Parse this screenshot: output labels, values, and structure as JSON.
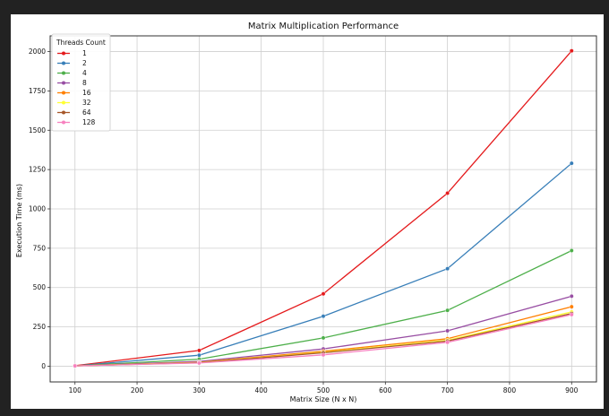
{
  "chart_data": {
    "type": "line",
    "title": "Matrix Multiplication Performance",
    "xlabel": "Matrix Size (N x N)",
    "ylabel": "Execution Time (ms)",
    "xlim": [
      60,
      940
    ],
    "ylim": [
      -100,
      2100
    ],
    "xticks": [
      100,
      200,
      300,
      400,
      500,
      600,
      700,
      800,
      900
    ],
    "yticks": [
      0,
      250,
      500,
      750,
      1000,
      1250,
      1500,
      1750,
      2000
    ],
    "grid": true,
    "legend_title": "Threads Count",
    "legend_position": "top-left",
    "x": [
      100,
      300,
      500,
      700,
      900
    ],
    "series": [
      {
        "name": "1",
        "color": "#e41a1c",
        "values": [
          3,
          100,
          460,
          1100,
          2005
        ]
      },
      {
        "name": "2",
        "color": "#377eb8",
        "values": [
          2,
          70,
          318,
          620,
          1290
        ]
      },
      {
        "name": "4",
        "color": "#4daf4a",
        "values": [
          2,
          45,
          180,
          355,
          735
        ]
      },
      {
        "name": "8",
        "color": "#984ea3",
        "values": [
          2,
          30,
          110,
          225,
          445
        ]
      },
      {
        "name": "16",
        "color": "#ff7f00",
        "values": [
          2,
          25,
          95,
          175,
          378
        ]
      },
      {
        "name": "32",
        "color": "#ffff33",
        "values": [
          2,
          23,
          88,
          165,
          345
        ]
      },
      {
        "name": "64",
        "color": "#a65628",
        "values": [
          2,
          22,
          85,
          160,
          335
        ]
      },
      {
        "name": "128",
        "color": "#f781bf",
        "values": [
          2,
          20,
          72,
          152,
          328
        ]
      }
    ]
  }
}
